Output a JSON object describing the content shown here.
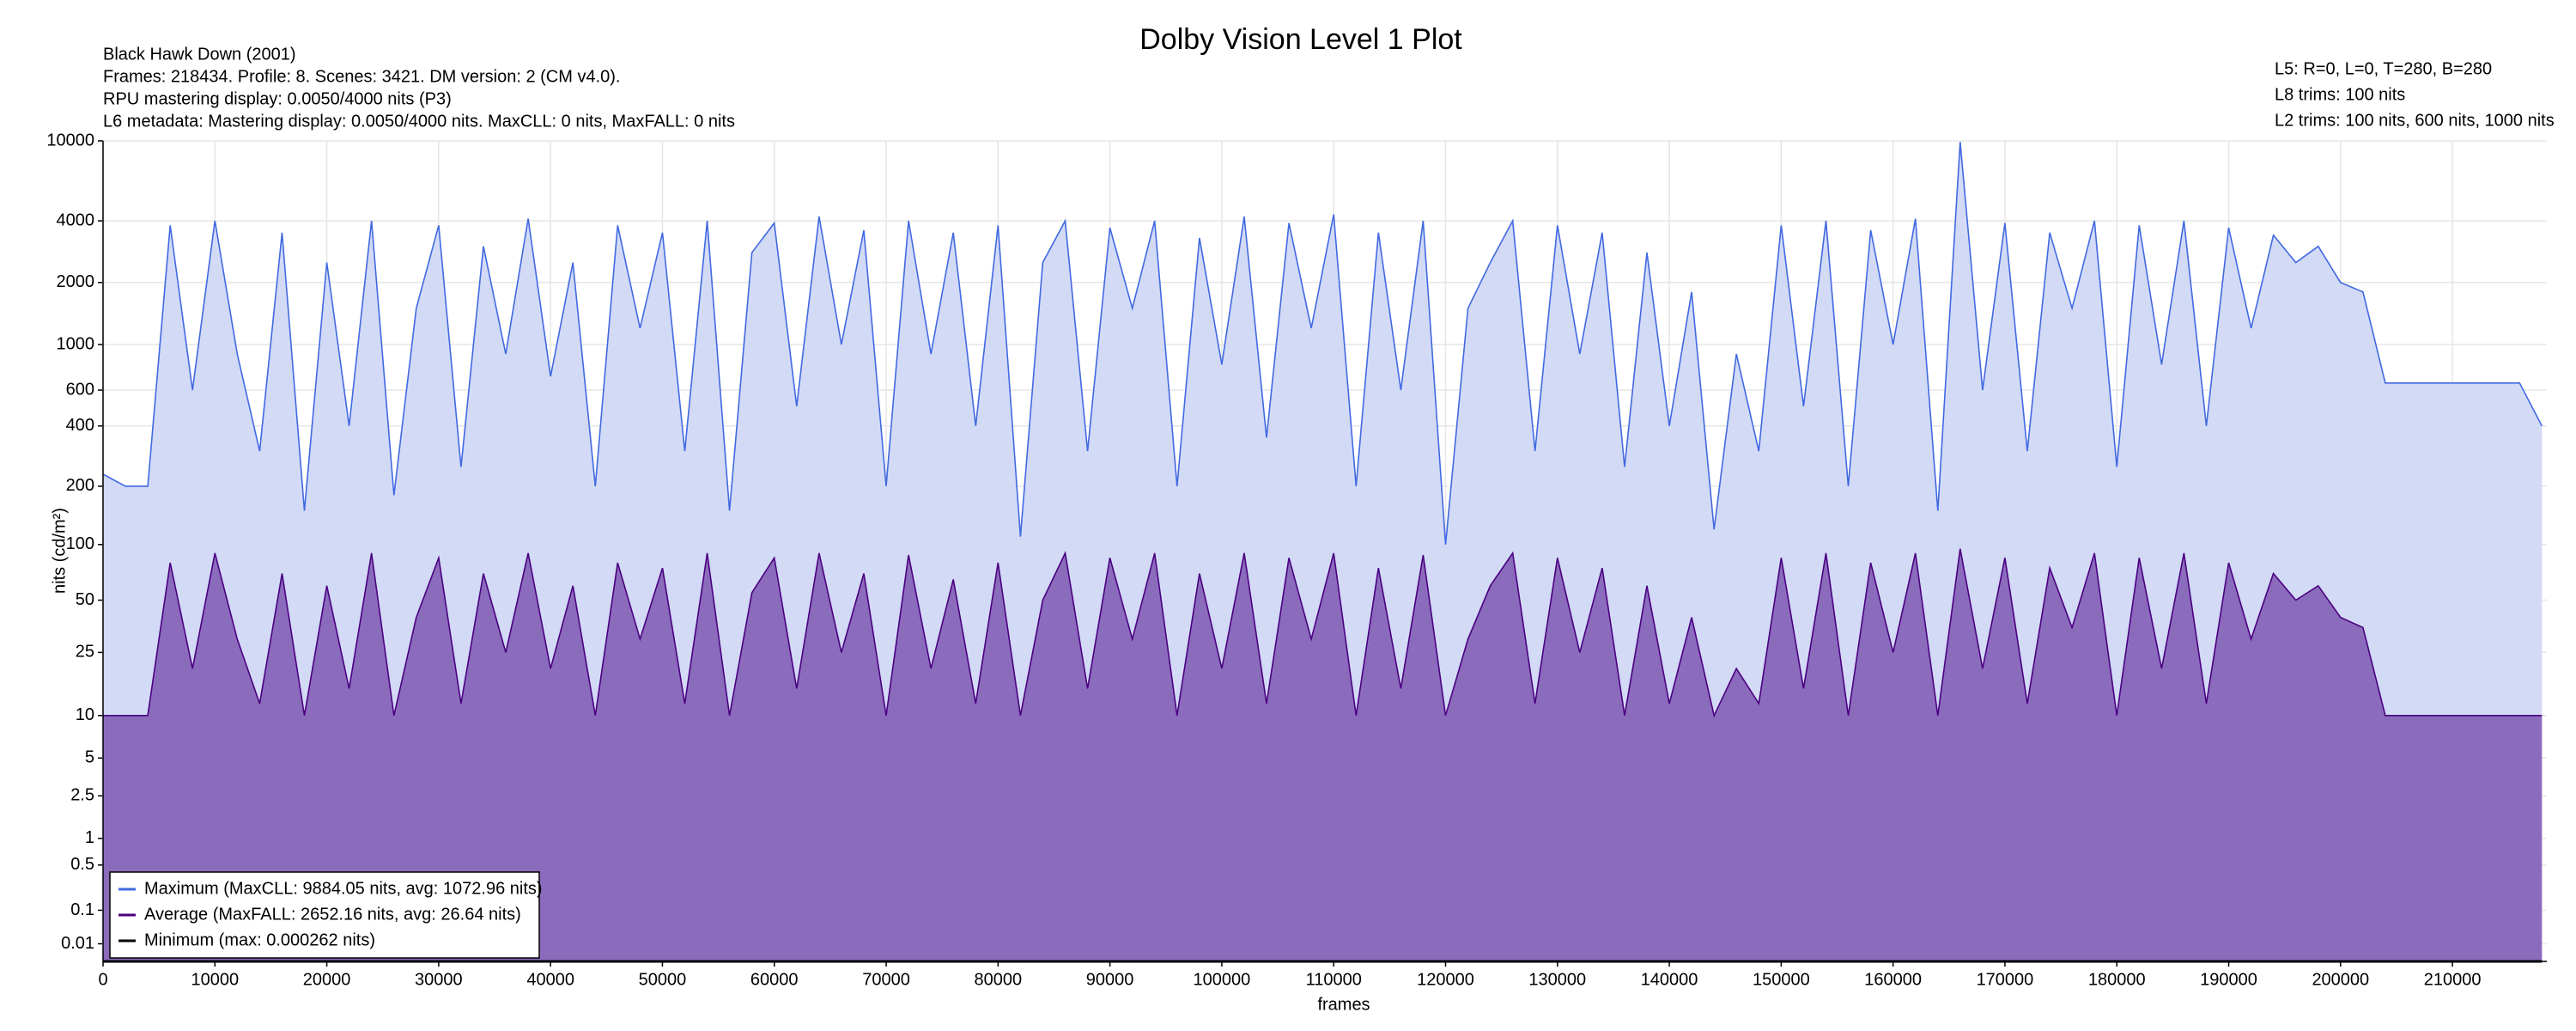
{
  "chart_data": {
    "type": "area",
    "title": "Dolby Vision Level 1 Plot",
    "annotations_left": [
      "Black Hawk Down (2001)",
      "Frames: 218434. Profile: 8. Scenes: 3421. DM version: 2 (CM v4.0).",
      "RPU mastering display: 0.0050/4000 nits  (P3)",
      "L6 metadata: Mastering display: 0.0050/4000 nits. MaxCLL: 0 nits, MaxFALL: 0 nits"
    ],
    "annotations_right": [
      "L5: R=0, L=0, T=280, B=280",
      "L8 trims: 100 nits",
      "L2 trims: 100 nits, 600 nits, 1000 nits"
    ],
    "x_label": "frames",
    "y_label": "nits (cd/m²)",
    "yscale": "pq",
    "grid": true,
    "legend": "lower left",
    "xlim": [
      0,
      218434
    ],
    "ylim": [
      0,
      10000
    ],
    "xticks": [
      0,
      10000,
      20000,
      30000,
      40000,
      50000,
      60000,
      70000,
      80000,
      90000,
      100000,
      110000,
      120000,
      130000,
      140000,
      150000,
      160000,
      170000,
      180000,
      190000,
      200000,
      210000
    ],
    "yticks": [
      0.01,
      0.1,
      0.5,
      1,
      2.5,
      5,
      10,
      25,
      50,
      100,
      200,
      400,
      600,
      1000,
      2000,
      4000,
      10000
    ],
    "x": [
      0,
      2000,
      4000,
      6000,
      8000,
      10000,
      12000,
      14000,
      16000,
      18000,
      20000,
      22000,
      24000,
      26000,
      28000,
      30000,
      32000,
      34000,
      36000,
      38000,
      40000,
      42000,
      44000,
      46000,
      48000,
      50000,
      52000,
      54000,
      56000,
      58000,
      60000,
      62000,
      64000,
      66000,
      68000,
      70000,
      72000,
      74000,
      76000,
      78000,
      80000,
      82000,
      84000,
      86000,
      88000,
      90000,
      92000,
      94000,
      96000,
      98000,
      100000,
      102000,
      104000,
      106000,
      108000,
      110000,
      112000,
      114000,
      116000,
      118000,
      120000,
      122000,
      124000,
      126000,
      128000,
      130000,
      132000,
      134000,
      136000,
      138000,
      140000,
      142000,
      144000,
      146000,
      148000,
      150000,
      152000,
      154000,
      156000,
      158000,
      160000,
      162000,
      164000,
      166000,
      168000,
      170000,
      172000,
      174000,
      176000,
      178000,
      180000,
      182000,
      184000,
      186000,
      188000,
      190000,
      192000,
      194000,
      196000,
      198000,
      200000,
      202000,
      204000,
      206000,
      208000,
      210000,
      212000,
      214000,
      216000,
      218000
    ],
    "series": [
      {
        "name": "Maximum (MaxCLL: 9884.05 nits, avg: 1072.96 nits)",
        "color": "#4169e1",
        "fill": "#d2daf6",
        "values": [
          230,
          200,
          200,
          3800,
          600,
          4000,
          900,
          300,
          3500,
          150,
          2500,
          400,
          4000,
          180,
          1500,
          3800,
          250,
          3000,
          900,
          4100,
          700,
          2500,
          200,
          3800,
          1200,
          3500,
          300,
          4000,
          150,
          2800,
          3900,
          500,
          4200,
          1000,
          3600,
          200,
          4000,
          900,
          3500,
          400,
          3800,
          110,
          2500,
          4000,
          300,
          3700,
          1500,
          4000,
          200,
          3300,
          800,
          4200,
          350,
          3900,
          1200,
          4300,
          200,
          3500,
          600,
          4000,
          100,
          1500,
          2500,
          4000,
          300,
          3800,
          900,
          3500,
          250,
          2800,
          400,
          1800,
          120,
          900,
          300,
          3800,
          500,
          4000,
          200,
          3600,
          1000,
          4100,
          150,
          9884,
          600,
          3900,
          300,
          3500,
          1500,
          4000,
          250,
          3800,
          800,
          4000,
          400,
          3700,
          1200,
          3400,
          2500,
          3000,
          2000,
          1800,
          650,
          650,
          650,
          650,
          650,
          650,
          650,
          400
        ]
      },
      {
        "name": "Average (MaxFALL: 2652.16 nits, avg: 26.64 nits)",
        "color": "#4b0082",
        "fill": "#8b6bbb",
        "values": [
          10,
          10,
          10,
          80,
          20,
          90,
          30,
          12,
          70,
          10,
          60,
          15,
          90,
          10,
          40,
          85,
          12,
          70,
          25,
          90,
          20,
          60,
          10,
          80,
          30,
          75,
          12,
          90,
          10,
          55,
          85,
          15,
          90,
          25,
          70,
          10,
          88,
          20,
          65,
          12,
          80,
          10,
          50,
          90,
          15,
          85,
          30,
          90,
          10,
          70,
          20,
          90,
          12,
          85,
          30,
          90,
          10,
          75,
          15,
          88,
          10,
          30,
          60,
          90,
          12,
          85,
          25,
          75,
          10,
          60,
          12,
          40,
          10,
          20,
          12,
          85,
          15,
          90,
          10,
          80,
          25,
          90,
          10,
          95,
          20,
          85,
          12,
          75,
          35,
          90,
          10,
          85,
          20,
          90,
          12,
          80,
          30,
          70,
          50,
          60,
          40,
          35,
          10,
          10,
          10,
          10,
          10,
          10,
          10,
          10
        ]
      },
      {
        "name": "Minimum (max: 0.000262 nits)",
        "color": "#000000",
        "values": [
          0,
          0,
          0,
          0,
          0,
          0,
          0,
          0,
          0,
          0,
          0,
          0,
          0,
          0,
          0,
          0,
          0,
          0,
          0,
          0,
          0,
          0,
          0,
          0,
          0,
          0,
          0,
          0,
          0,
          0,
          0,
          0,
          0,
          0,
          0,
          0,
          0,
          0,
          0,
          0,
          0,
          0,
          0,
          0,
          0,
          0,
          0,
          0,
          0,
          0,
          0,
          0,
          0,
          0,
          0,
          0,
          0,
          0,
          0,
          0,
          0,
          0,
          0,
          0,
          0,
          0,
          0,
          0,
          0,
          0,
          0,
          0,
          0,
          0,
          0,
          0,
          0,
          0,
          0,
          0,
          0,
          0,
          0,
          0,
          0,
          0,
          0,
          0,
          0,
          0,
          0,
          0,
          0,
          0,
          0,
          0,
          0,
          0,
          0,
          0,
          0,
          0,
          0,
          0,
          0,
          0,
          0,
          0,
          0,
          0
        ]
      }
    ]
  }
}
